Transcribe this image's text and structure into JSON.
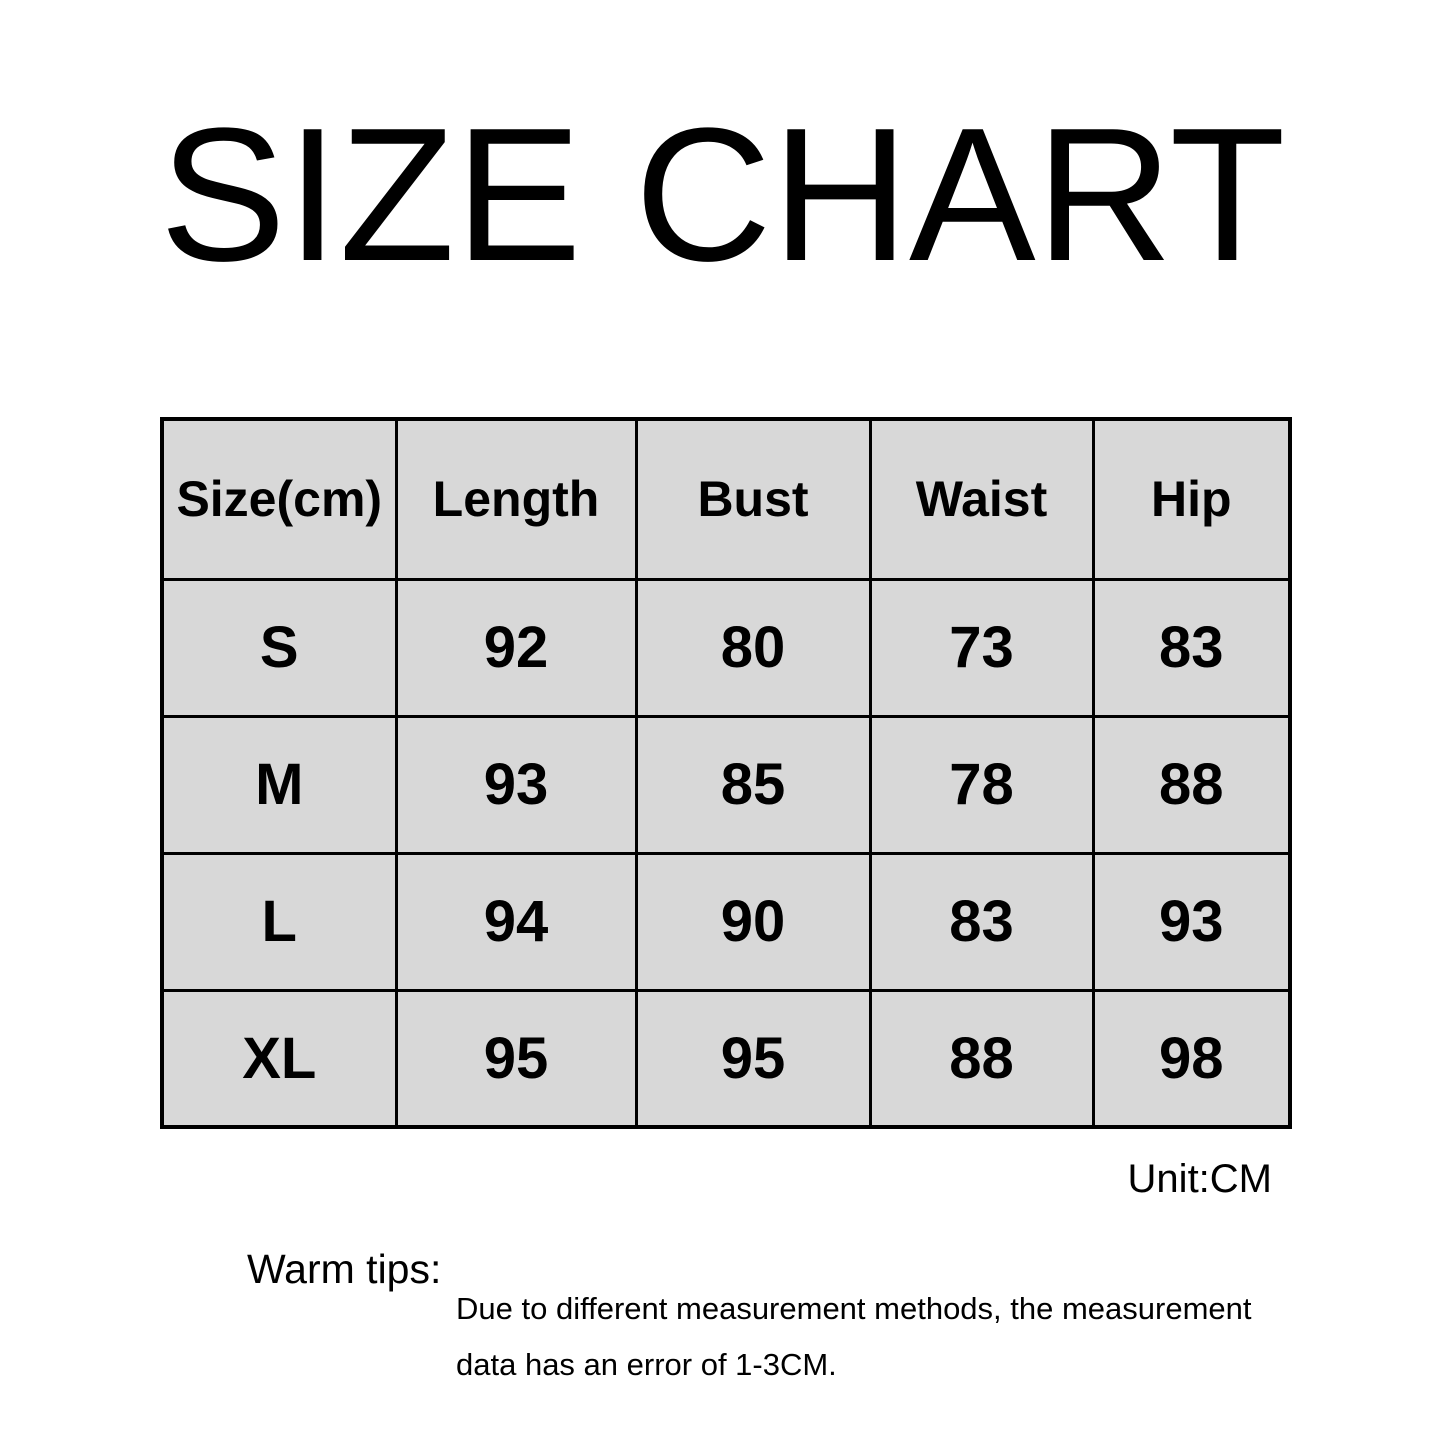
{
  "title": "SIZE CHART",
  "unit_label": "Unit:CM",
  "warm_tips": {
    "label": "Warm tips:",
    "line1": "Due to different measurement methods, the measurement",
    "line2": "data has an error of 1-3CM."
  },
  "chart_data": {
    "type": "table",
    "title": "SIZE CHART",
    "unit": "CM",
    "columns": [
      "Size(cm)",
      "Length",
      "Bust",
      "Waist",
      "Hip"
    ],
    "rows": [
      [
        "S",
        "92",
        "80",
        "73",
        "83"
      ],
      [
        "M",
        "93",
        "85",
        "78",
        "88"
      ],
      [
        "L",
        "94",
        "90",
        "83",
        "93"
      ],
      [
        "XL",
        "95",
        "95",
        "88",
        "98"
      ]
    ],
    "notes": "Due to different measurement methods, the measurement data has an error of 1-3CM."
  },
  "colors": {
    "page_background": "#ffffff",
    "cell_background": "#d8d8d8",
    "table_border": "#000000",
    "text": "#000000"
  }
}
